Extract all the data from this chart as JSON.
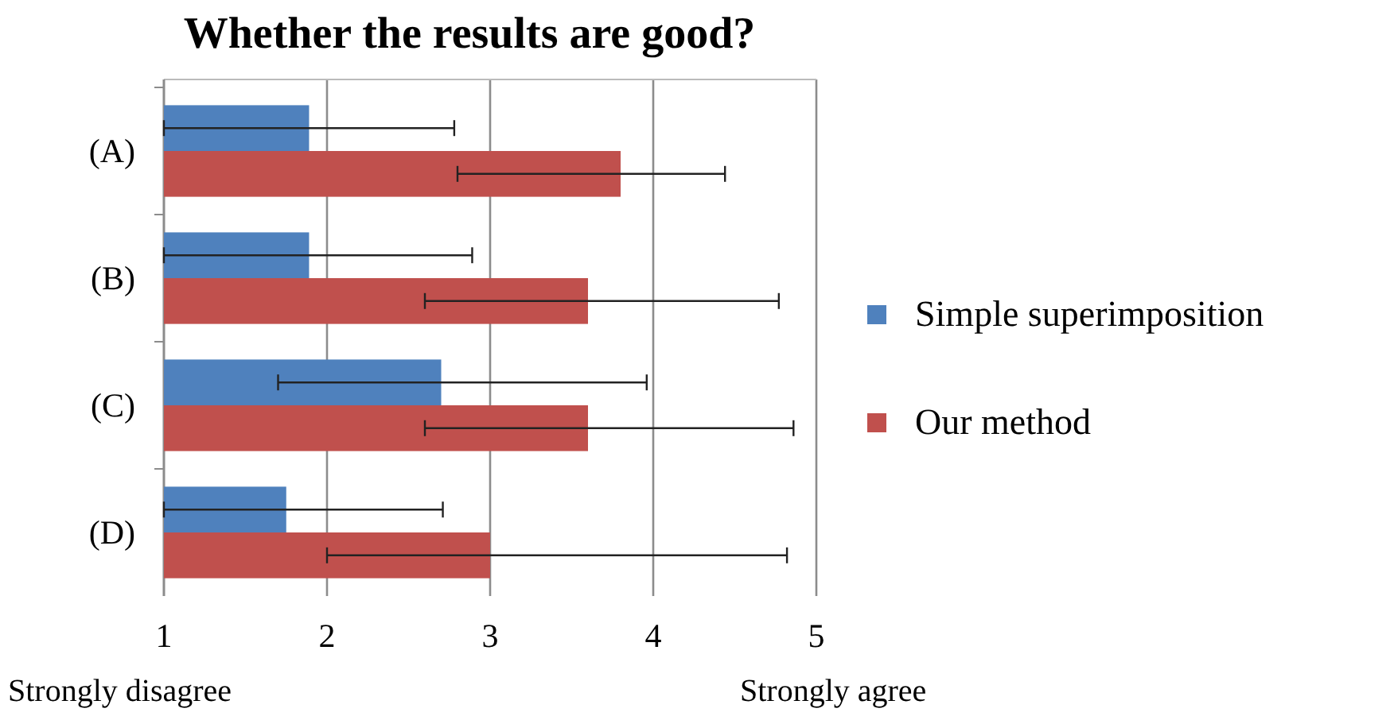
{
  "chart_data": {
    "type": "bar",
    "orientation": "horizontal",
    "title": "Whether the results are good?",
    "categories": [
      "(A)",
      "(B)",
      "(C)",
      "(D)"
    ],
    "series": [
      {
        "name": "Simple superimposition",
        "color": "#4f81bd",
        "values": [
          1.89,
          1.89,
          2.7,
          1.75
        ],
        "errors": [
          [
            1,
            2.78
          ],
          [
            1,
            2.89
          ],
          [
            1.7,
            3.96
          ],
          [
            1,
            2.71
          ]
        ]
      },
      {
        "name": "Our method",
        "color": "#c0504d",
        "values": [
          3.8,
          3.6,
          3.6,
          3.0
        ],
        "errors": [
          [
            2.8,
            4.44
          ],
          [
            2.6,
            4.77
          ],
          [
            2.6,
            4.86
          ],
          [
            2.0,
            4.82
          ]
        ]
      }
    ],
    "xlim": [
      1,
      5
    ],
    "xticks": [
      1,
      2,
      3,
      4,
      5
    ],
    "grid": "x",
    "legend": "right",
    "annotations": [
      "Strongly disagree",
      "Strongly agree"
    ]
  }
}
